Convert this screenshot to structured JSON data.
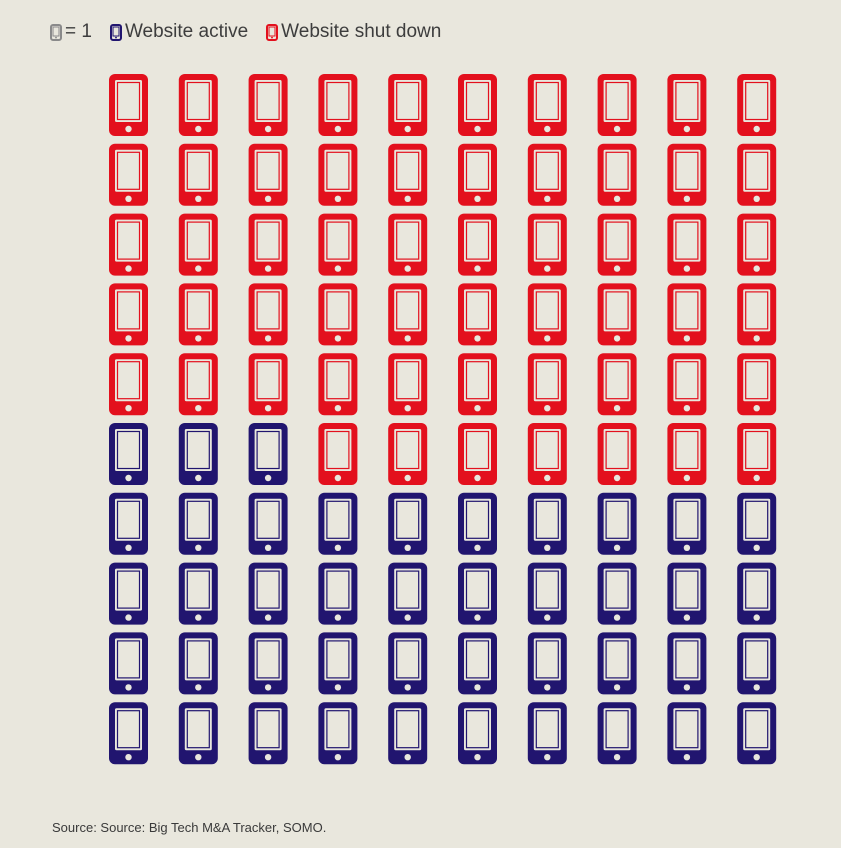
{
  "legend": {
    "unit_text": "= 1",
    "unit_icon": "phone-icon",
    "items": [
      {
        "label": "Website active",
        "color": "#21156f",
        "icon": "phone-icon"
      },
      {
        "label": "Website shut down",
        "color": "#e3101d",
        "icon": "phone-icon"
      }
    ]
  },
  "chart_data": {
    "type": "waffle",
    "unit_value": 1,
    "columns": 10,
    "rows": 10,
    "fill_order": "bottom-up, left-to-right",
    "categories": [
      "Website active",
      "Website shut down"
    ],
    "values": [
      43,
      57
    ],
    "colors": [
      "#21156f",
      "#e3101d"
    ],
    "unit_icon_color": "#8a8a8a"
  },
  "footer": {
    "source": "Source: Source: Big Tech M&A Tracker, SOMO."
  }
}
